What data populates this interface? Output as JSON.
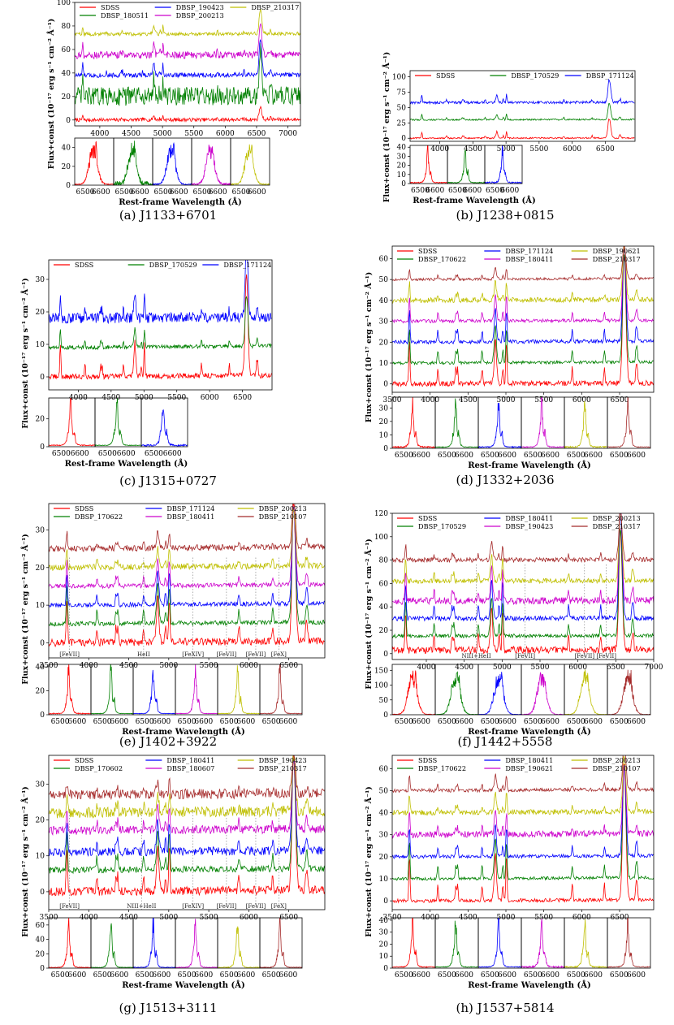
{
  "colors": {
    "red": "#ff0000",
    "green": "#008000",
    "blue": "#0000ff",
    "magenta": "#cc00cc",
    "olive": "#bfbf00",
    "brown": "#a52a2a"
  },
  "chart_data": [
    {
      "type": "line",
      "caption": "(a)   J1133+6701",
      "ylabel": "Flux+const (10⁻¹⁷ erg s⁻¹ cm⁻² Å⁻¹)",
      "xlabel": "Rest-frame Wavelength (Å)",
      "xlim": [
        3600,
        7200
      ],
      "ylim": [
        -5,
        100
      ],
      "xticks": [
        4000,
        4500,
        5000,
        5500,
        6000,
        6500,
        7000
      ],
      "yticks": [
        0,
        20,
        40,
        60,
        80,
        100
      ],
      "series": [
        {
          "name": "SDSS",
          "color": "red",
          "offset": 0,
          "noise": 1.5,
          "peak": 10
        },
        {
          "name": "DBSP_180511",
          "color": "green",
          "offset": 20,
          "noise": 8,
          "peak": 40
        },
        {
          "name": "DBSP_190423",
          "color": "blue",
          "offset": 38,
          "noise": 2,
          "peak": 28
        },
        {
          "name": "DBSP_200213",
          "color": "magenta",
          "offset": 55,
          "noise": 3,
          "peak": 25
        },
        {
          "name": "DBSP_210317",
          "color": "olive",
          "offset": 73,
          "noise": 1.5,
          "peak": 20
        }
      ],
      "inset": {
        "xticks": [
          "6500",
          "6600"
        ],
        "yticks": [
          0,
          20,
          40
        ],
        "ylim": [
          0,
          50
        ]
      }
    },
    {
      "type": "line",
      "caption": "(b)   J1238+0815",
      "ylabel": "Flux+const (10⁻¹⁷ erg s⁻¹ cm⁻² Å⁻¹)",
      "xlabel": "Rest-frame Wavelength (Å)",
      "xlim": [
        3550,
        6950
      ],
      "ylim": [
        -5,
        110
      ],
      "xticks": [
        4000,
        4500,
        5000,
        5500,
        6000,
        6500
      ],
      "yticks": [
        0,
        25,
        50,
        75,
        100
      ],
      "series": [
        {
          "name": "SDSS",
          "color": "red",
          "offset": 0,
          "noise": 1.2,
          "peak": 30
        },
        {
          "name": "DBSP_170529",
          "color": "green",
          "offset": 30,
          "noise": 1.2,
          "peak": 25
        },
        {
          "name": "DBSP_171124",
          "color": "blue",
          "offset": 58,
          "noise": 2,
          "peak": 35
        }
      ],
      "inset": {
        "xticks": [
          "6500",
          "6600"
        ],
        "yticks": [
          0,
          10,
          20,
          30,
          40
        ],
        "ylim": [
          0,
          42
        ]
      }
    },
    {
      "type": "line",
      "caption": "(c)   J1315+0727",
      "ylabel": "Flux+const (10⁻¹⁷ erg s⁻¹ cm⁻² Å⁻¹)",
      "xlabel": "Rest-frame Wavelength (Å)",
      "xlim": [
        3550,
        6950
      ],
      "ylim": [
        -4,
        36
      ],
      "xticks": [
        4000,
        4500,
        5000,
        5500,
        6000,
        6500
      ],
      "yticks": [
        0,
        10,
        20,
        30
      ],
      "series": [
        {
          "name": "SDSS",
          "color": "red",
          "offset": 0,
          "noise": 0.8,
          "peak": 30
        },
        {
          "name": "DBSP_170529",
          "color": "green",
          "offset": 9,
          "noise": 0.6,
          "peak": 15
        },
        {
          "name": "DBSP_171124",
          "color": "blue",
          "offset": 18,
          "noise": 1.6,
          "peak": 20
        }
      ],
      "inset": {
        "xticks": [
          "6500",
          "6600"
        ],
        "yticks": [
          0,
          20
        ],
        "ylim": [
          0,
          35
        ]
      }
    },
    {
      "type": "line",
      "caption": "(d)   J1332+2036",
      "ylabel": "Flux+const (10⁻¹⁷ erg s⁻¹ cm⁻² Å⁻¹)",
      "xlabel": "Rest-frame Wavelength (Å)",
      "xlim": [
        3500,
        6950
      ],
      "ylim": [
        -4,
        66
      ],
      "xticks": [
        3500,
        4000,
        4500,
        5000,
        5500,
        6000,
        6500
      ],
      "yticks": [
        0,
        10,
        20,
        30,
        40,
        50,
        60
      ],
      "series": [
        {
          "name": "SDSS",
          "color": "red",
          "offset": 0,
          "noise": 1.2,
          "peak": 60
        },
        {
          "name": "DBSP_170622",
          "color": "green",
          "offset": 10,
          "noise": 0.7,
          "peak": 50
        },
        {
          "name": "DBSP_171124",
          "color": "blue",
          "offset": 20,
          "noise": 0.9,
          "peak": 45
        },
        {
          "name": "DBSP_180411",
          "color": "magenta",
          "offset": 30,
          "noise": 0.8,
          "peak": 35
        },
        {
          "name": "DBSP_190621",
          "color": "olive",
          "offset": 40,
          "noise": 1.2,
          "peak": 25
        },
        {
          "name": "DBSP_210317",
          "color": "brown",
          "offset": 50,
          "noise": 0.6,
          "peak": 15
        }
      ],
      "inset": {
        "xticks": [
          "6500",
          "6600"
        ],
        "yticks": [
          0,
          10,
          20,
          30
        ],
        "ylim": [
          0,
          38
        ]
      }
    },
    {
      "type": "line",
      "caption": "(e)   J1402+3922",
      "ylabel": "Flux+const (10⁻¹⁷ erg s⁻¹ cm⁻² Å⁻¹)",
      "xlabel": "Rest-frame Wavelength (Å)",
      "xlim": [
        3500,
        6950
      ],
      "ylim": [
        -4,
        37
      ],
      "xticks": [
        3500,
        4000,
        4500,
        5000,
        5500,
        6000,
        6500
      ],
      "yticks": [
        0,
        10,
        20,
        30
      ],
      "annotations": [
        {
          "text": "[FeVII]",
          "x": 3760
        },
        {
          "text": "HeII",
          "x": 4686
        },
        {
          "text": "[FeXIV]",
          "x": 5303
        },
        {
          "text": "[FeVII]",
          "x": 5721
        },
        {
          "text": "[FeVII]",
          "x": 6087
        },
        {
          "text": "[FeX]",
          "x": 6375
        }
      ],
      "series": [
        {
          "name": "SDSS",
          "color": "red",
          "offset": 0,
          "noise": 1,
          "peak": 35
        },
        {
          "name": "DBSP_170622",
          "color": "green",
          "offset": 5,
          "noise": 0.6,
          "peak": 30
        },
        {
          "name": "DBSP_171124",
          "color": "blue",
          "offset": 10,
          "noise": 0.6,
          "peak": 25
        },
        {
          "name": "DBSP_180411",
          "color": "magenta",
          "offset": 15,
          "noise": 0.6,
          "peak": 20
        },
        {
          "name": "DBSP_200213",
          "color": "olive",
          "offset": 20,
          "noise": 0.8,
          "peak": 15
        },
        {
          "name": "DBSP_210107",
          "color": "brown",
          "offset": 25,
          "noise": 0.8,
          "peak": 12
        }
      ],
      "inset": {
        "xticks": [
          "6500",
          "6600"
        ],
        "yticks": [
          0,
          20,
          40
        ],
        "ylim": [
          0,
          42
        ]
      }
    },
    {
      "type": "line",
      "caption": "(f)   J1442+5558",
      "ylabel": "Flux+const (10⁻¹⁷ erg s⁻¹ cm⁻² Å⁻¹)",
      "xlabel": "Rest-frame Wavelength (Å)",
      "xlim": [
        3550,
        7000
      ],
      "ylim": [
        -5,
        120
      ],
      "xticks": [
        4000,
        4500,
        5000,
        5500,
        6000,
        6500,
        7000
      ],
      "yticks": [
        0,
        20,
        40,
        60,
        80,
        100,
        120
      ],
      "annotations": [
        {
          "text": "NIII+HeII",
          "x": 4660
        },
        {
          "text": "[FeVII]",
          "x": 5303
        },
        {
          "text": "[FeVII]",
          "x": 6087
        },
        {
          "text": "[FeVII]",
          "x": 6375
        }
      ],
      "series": [
        {
          "name": "SDSS",
          "color": "red",
          "offset": 3,
          "noise": 3,
          "peak": 100
        },
        {
          "name": "DBSP_170529",
          "color": "green",
          "offset": 15,
          "noise": 1.5,
          "peak": 90
        },
        {
          "name": "DBSP_180411",
          "color": "blue",
          "offset": 30,
          "noise": 2,
          "peak": 90
        },
        {
          "name": "DBSP_190423",
          "color": "magenta",
          "offset": 45,
          "noise": 3,
          "peak": 80
        },
        {
          "name": "DBSP_200213",
          "color": "olive",
          "offset": 62,
          "noise": 2,
          "peak": 60
        },
        {
          "name": "DBSP_210317",
          "color": "brown",
          "offset": 80,
          "noise": 2,
          "peak": 40
        }
      ],
      "inset": {
        "xticks": [
          "6500",
          "6600"
        ],
        "yticks": [
          0,
          50,
          100,
          150
        ],
        "ylim": [
          0,
          170
        ]
      }
    },
    {
      "type": "line",
      "caption": "(g)   J1513+3111",
      "ylabel": "Flux+const (10⁻¹⁷ erg s⁻¹ cm⁻² Å⁻¹)",
      "xlabel": "Rest-frame Wavelength (Å)",
      "xlim": [
        3500,
        6950
      ],
      "ylim": [
        -5,
        38
      ],
      "xticks": [
        3500,
        4000,
        4500,
        5000,
        5500,
        6000,
        6500
      ],
      "yticks": [
        0,
        10,
        20,
        30
      ],
      "annotations": [
        {
          "text": "[FeVII]",
          "x": 3760
        },
        {
          "text": "NIII+HeII",
          "x": 4660
        },
        {
          "text": "[FeXIV]",
          "x": 5303
        },
        {
          "text": "[FeVII]",
          "x": 5721
        },
        {
          "text": "[FeVII]",
          "x": 6087
        },
        {
          "text": "[FeX]",
          "x": 6375
        }
      ],
      "series": [
        {
          "name": "SDSS",
          "color": "red",
          "offset": 0,
          "noise": 1.2,
          "peak": 36
        },
        {
          "name": "DBSP_170602",
          "color": "green",
          "offset": 6,
          "noise": 0.9,
          "peak": 30
        },
        {
          "name": "DBSP_180411",
          "color": "blue",
          "offset": 11,
          "noise": 1.2,
          "peak": 25
        },
        {
          "name": "DBSP_180607",
          "color": "magenta",
          "offset": 17,
          "noise": 1.2,
          "peak": 20
        },
        {
          "name": "DBSP_190423",
          "color": "olive",
          "offset": 22,
          "noise": 1.5,
          "peak": 15
        },
        {
          "name": "DBSP_210317",
          "color": "brown",
          "offset": 27,
          "noise": 1.4,
          "peak": 10
        }
      ],
      "inset": {
        "xticks": [
          "6500",
          "6600"
        ],
        "yticks": [
          0,
          20,
          40,
          60
        ],
        "ylim": [
          0,
          70
        ]
      }
    },
    {
      "type": "line",
      "caption": "(h)   J1537+5814",
      "ylabel": "Flux+const (10⁻¹⁷ erg s⁻¹ cm⁻² Å⁻¹)",
      "xlabel": "Rest-frame Wavelength (Å)",
      "xlim": [
        3500,
        6950
      ],
      "ylim": [
        -4,
        66
      ],
      "xticks": [
        3500,
        4000,
        4500,
        5000,
        5500,
        6000,
        6500
      ],
      "yticks": [
        0,
        10,
        20,
        30,
        40,
        50,
        60
      ],
      "series": [
        {
          "name": "SDSS",
          "color": "red",
          "offset": 0,
          "noise": 0.8,
          "peak": 60
        },
        {
          "name": "DBSP_170622",
          "color": "green",
          "offset": 10,
          "noise": 0.7,
          "peak": 50
        },
        {
          "name": "DBSP_180411",
          "color": "blue",
          "offset": 20,
          "noise": 0.8,
          "peak": 40
        },
        {
          "name": "DBSP_190621",
          "color": "magenta",
          "offset": 30,
          "noise": 1.5,
          "peak": 30
        },
        {
          "name": "DBSP_200213",
          "color": "olive",
          "offset": 40,
          "noise": 1.2,
          "peak": 25
        },
        {
          "name": "DBSP_210107",
          "color": "brown",
          "offset": 50,
          "noise": 0.8,
          "peak": 20
        }
      ],
      "inset": {
        "xticks": [
          "6500",
          "6600"
        ],
        "yticks": [
          0,
          10,
          20,
          30,
          40
        ],
        "ylim": [
          0,
          42
        ]
      }
    }
  ]
}
